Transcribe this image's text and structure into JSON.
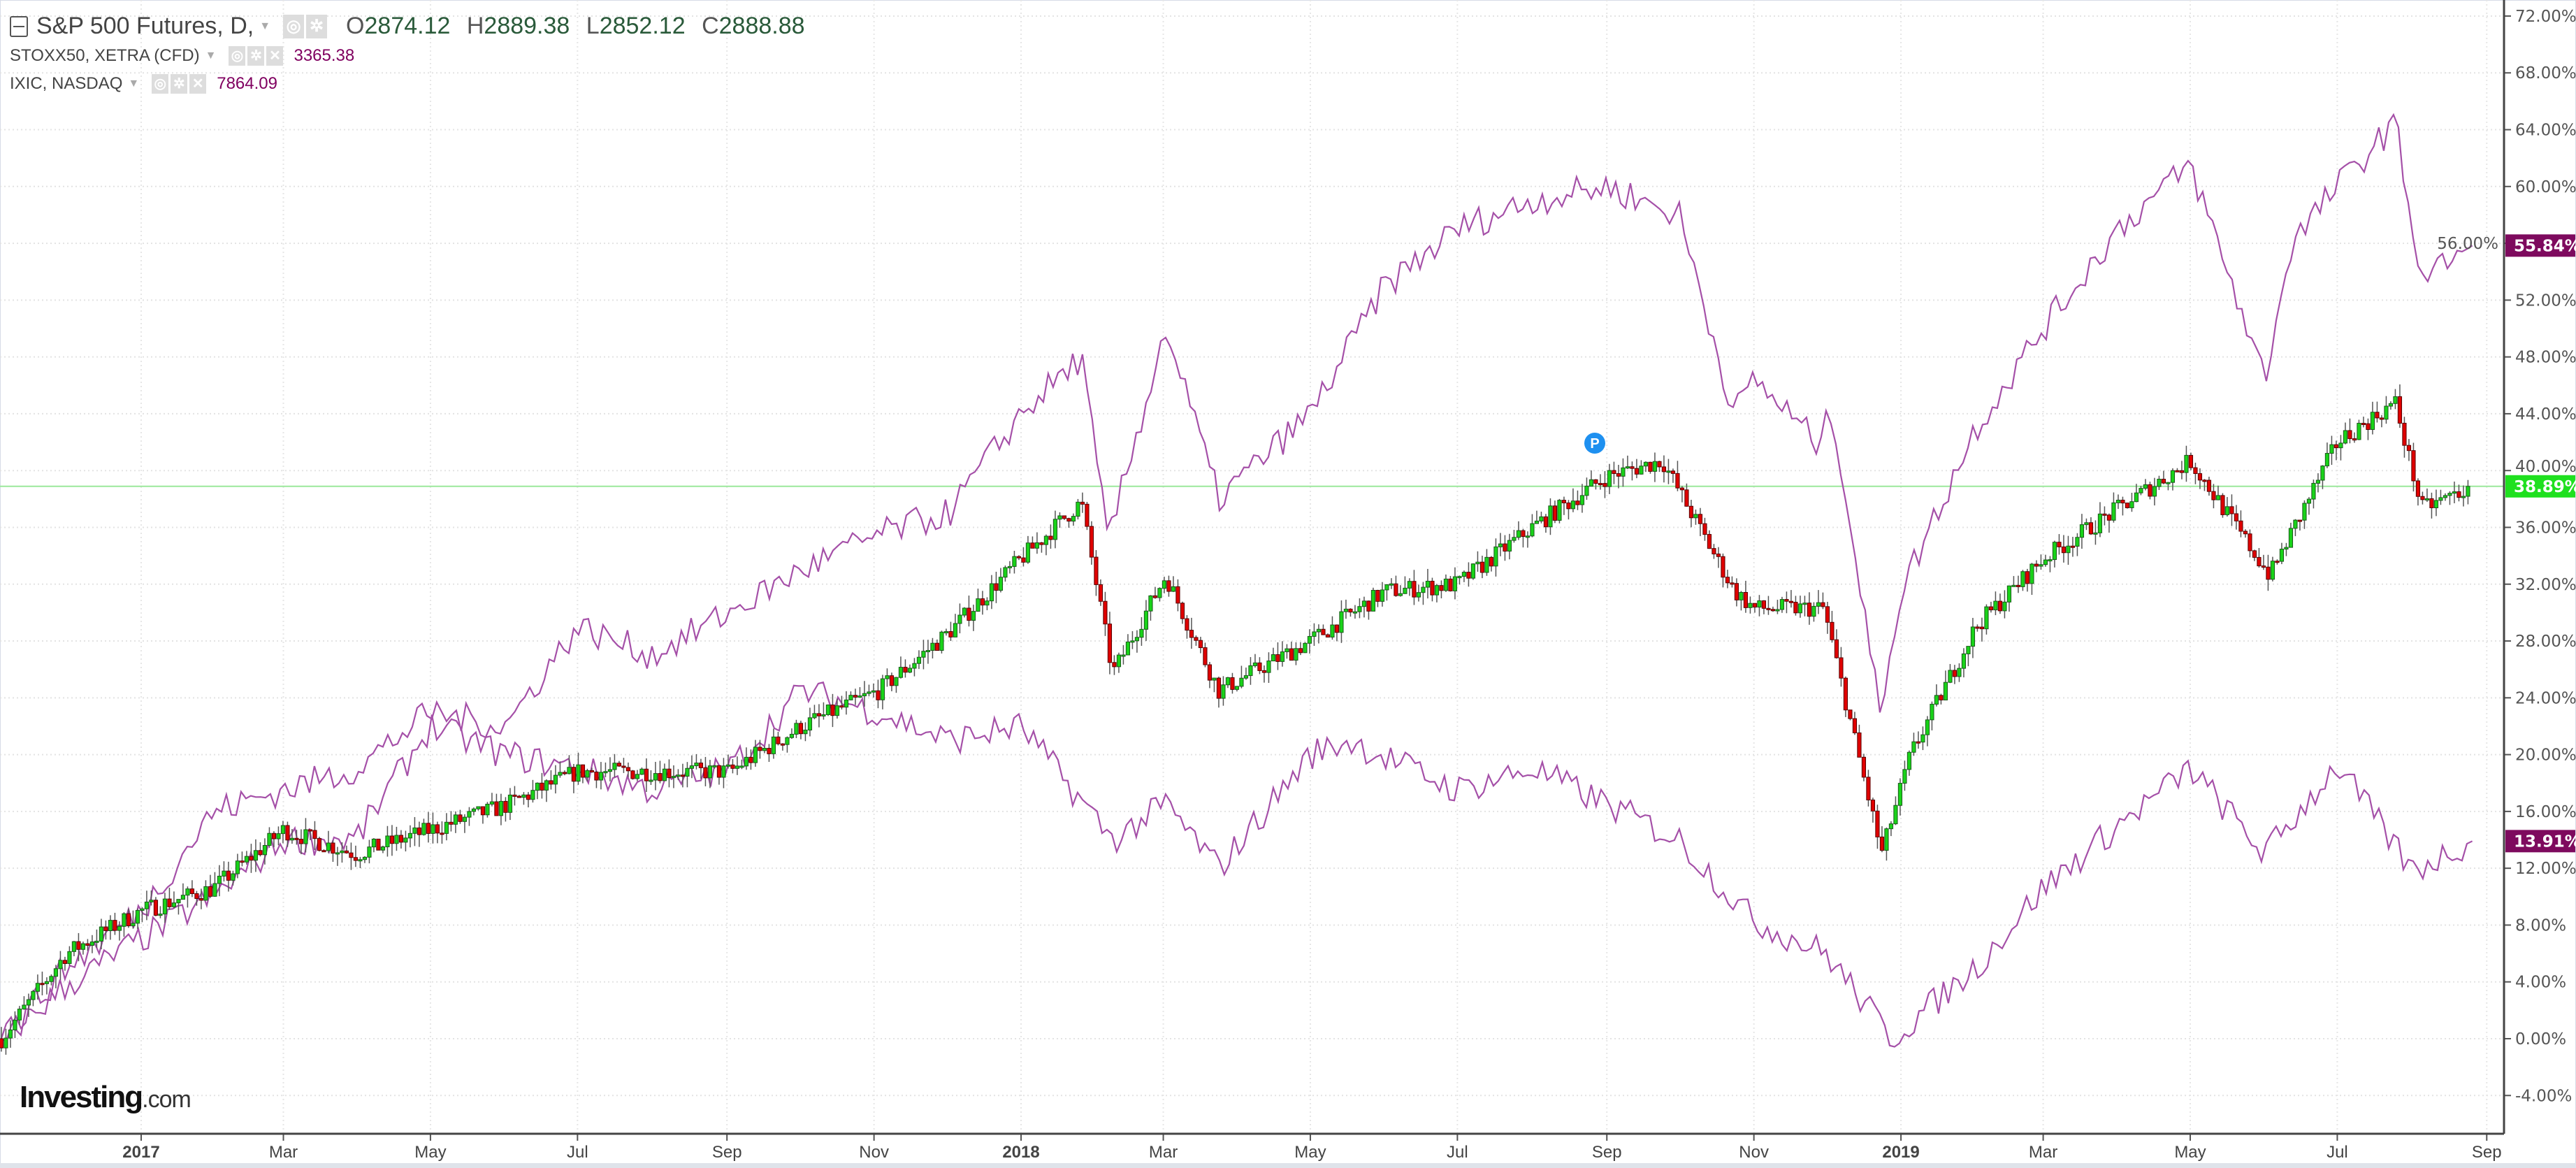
{
  "legend": {
    "main": {
      "symbol": "S&P 500 Futures, D,",
      "o_label": "O",
      "o": "2874.12",
      "h_label": "H",
      "h": "2889.38",
      "l_label": "L",
      "l": "2852.12",
      "c_label": "C",
      "c": "2888.88"
    },
    "compare1": {
      "symbol": "STOXX50, XETRA (CFD)",
      "value": "3365.38"
    },
    "compare2": {
      "symbol": "IXIC, NASDAQ",
      "value": "7864.09"
    }
  },
  "logo": {
    "brand": "Investing",
    "suffix": ".com"
  },
  "marker": {
    "label": "P",
    "date": "2018-08-27"
  },
  "colors": {
    "up": "#19d319",
    "down": "#e00000",
    "compare_line": "#a550a8",
    "badge_purple": "#7e0a5e",
    "badge_green": "#1fe01f",
    "pane_line": "#9be89b"
  },
  "chart_data": {
    "type": "candlestick+line",
    "ylabel": "",
    "yscale": "percent",
    "ylim": [
      -6,
      73
    ],
    "y_ticks": [
      "72.00%",
      "68.00%",
      "64.00%",
      "60.00%",
      "56.00%",
      "52.00%",
      "48.00%",
      "44.00%",
      "40.00%",
      "36.00%",
      "32.00%",
      "28.00%",
      "24.00%",
      "20.00%",
      "16.00%",
      "12.00%",
      "8.00%",
      "4.00%",
      "0.00%",
      "-4.00%"
    ],
    "x_ticks": [
      {
        "label": "2017",
        "date": "2017-01-01",
        "bold": true
      },
      {
        "label": "Mar",
        "date": "2017-03-01"
      },
      {
        "label": "May",
        "date": "2017-05-01"
      },
      {
        "label": "Jul",
        "date": "2017-07-01"
      },
      {
        "label": "Sep",
        "date": "2017-09-01"
      },
      {
        "label": "Nov",
        "date": "2017-11-01"
      },
      {
        "label": "2018",
        "date": "2018-01-01",
        "bold": true
      },
      {
        "label": "Mar",
        "date": "2018-03-01"
      },
      {
        "label": "May",
        "date": "2018-05-01"
      },
      {
        "label": "Jul",
        "date": "2018-07-01"
      },
      {
        "label": "Sep",
        "date": "2018-09-01"
      },
      {
        "label": "Nov",
        "date": "2018-11-01"
      },
      {
        "label": "2019",
        "date": "2019-01-01",
        "bold": true
      },
      {
        "label": "Mar",
        "date": "2019-03-01"
      },
      {
        "label": "May",
        "date": "2019-05-01"
      },
      {
        "label": "Jul",
        "date": "2019-07-01"
      },
      {
        "label": "Sep",
        "date": "2019-09-01"
      }
    ],
    "grid": true,
    "series": [
      {
        "name": "S&P 500 Futures",
        "style": "candles",
        "last_label": "38.89%",
        "last": 38.89,
        "points": [
          [
            "2016-11-04",
            0
          ],
          [
            "2016-12-01",
            6
          ],
          [
            "2017-01-01",
            9
          ],
          [
            "2017-01-31",
            10.6
          ],
          [
            "2017-03-01",
            14.7
          ],
          [
            "2017-03-31",
            13
          ],
          [
            "2017-05-01",
            14.7
          ],
          [
            "2017-06-01",
            16.4
          ],
          [
            "2017-07-01",
            18.8
          ],
          [
            "2017-08-01",
            18.8
          ],
          [
            "2017-09-02",
            18.8
          ],
          [
            "2017-10-02",
            22
          ],
          [
            "2017-11-03",
            24.5
          ],
          [
            "2017-12-02",
            28.6
          ],
          [
            "2018-01-01",
            33.8
          ],
          [
            "2018-01-26",
            37.8
          ],
          [
            "2018-02-08",
            25.7
          ],
          [
            "2018-03-02",
            32.6
          ],
          [
            "2018-03-24",
            24.5
          ],
          [
            "2018-05-01",
            28
          ],
          [
            "2018-06-01",
            31.5
          ],
          [
            "2018-07-01",
            32
          ],
          [
            "2018-08-01",
            36
          ],
          [
            "2018-09-01",
            39.6
          ],
          [
            "2018-09-24",
            40.7
          ],
          [
            "2018-10-24",
            31.5
          ],
          [
            "2018-11-01",
            30.3
          ],
          [
            "2018-11-30",
            30.3
          ],
          [
            "2018-12-24",
            13
          ],
          [
            "2019-01-05",
            20
          ],
          [
            "2019-02-01",
            29
          ],
          [
            "2019-03-01",
            33.8
          ],
          [
            "2019-04-01",
            37.3
          ],
          [
            "2019-05-01",
            40.7
          ],
          [
            "2019-06-03",
            32.6
          ],
          [
            "2019-07-01",
            42
          ],
          [
            "2019-07-25",
            44.8
          ],
          [
            "2019-08-05",
            37.3
          ],
          [
            "2019-08-26",
            38.89
          ]
        ]
      },
      {
        "name": "STOXX50, XETRA (CFD)",
        "style": "line",
        "last_label": "13.91%",
        "last": 13.91,
        "points": [
          [
            "2016-11-04",
            0
          ],
          [
            "2016-12-01",
            3.7
          ],
          [
            "2017-01-01",
            7
          ],
          [
            "2017-01-31",
            10
          ],
          [
            "2017-03-01",
            14
          ],
          [
            "2017-03-31",
            14
          ],
          [
            "2017-05-01",
            22
          ],
          [
            "2017-06-01",
            20
          ],
          [
            "2017-07-01",
            19
          ],
          [
            "2017-08-01",
            17.5
          ],
          [
            "2017-09-02",
            19
          ],
          [
            "2017-10-02",
            24.5
          ],
          [
            "2017-11-03",
            23
          ],
          [
            "2017-12-02",
            21
          ],
          [
            "2018-01-01",
            22
          ],
          [
            "2018-02-08",
            14
          ],
          [
            "2018-03-02",
            16.5
          ],
          [
            "2018-03-24",
            12
          ],
          [
            "2018-05-01",
            20
          ],
          [
            "2018-05-17",
            21
          ],
          [
            "2018-07-01",
            17.5
          ],
          [
            "2018-08-01",
            19
          ],
          [
            "2018-09-01",
            16.5
          ],
          [
            "2018-10-01",
            14
          ],
          [
            "2018-11-01",
            8.3
          ],
          [
            "2018-12-01",
            6
          ],
          [
            "2018-12-28",
            0
          ],
          [
            "2019-02-01",
            5
          ],
          [
            "2019-03-01",
            10.6
          ],
          [
            "2019-04-01",
            15
          ],
          [
            "2019-05-01",
            19
          ],
          [
            "2019-06-01",
            13
          ],
          [
            "2019-07-01",
            19.3
          ],
          [
            "2019-08-01",
            11.8
          ],
          [
            "2019-08-26",
            13.91
          ]
        ]
      },
      {
        "name": "IXIC, NASDAQ",
        "style": "line",
        "last_label": "55.84%",
        "last": 55.84,
        "points": [
          [
            "2016-11-04",
            0
          ],
          [
            "2016-12-01",
            5
          ],
          [
            "2017-01-01",
            9
          ],
          [
            "2017-01-31",
            16
          ],
          [
            "2017-03-01",
            17.5
          ],
          [
            "2017-03-31",
            19
          ],
          [
            "2017-05-01",
            23
          ],
          [
            "2017-06-01",
            22
          ],
          [
            "2017-07-01",
            29
          ],
          [
            "2017-08-01",
            27
          ],
          [
            "2017-09-02",
            30
          ],
          [
            "2017-10-02",
            33
          ],
          [
            "2017-11-03",
            35.5
          ],
          [
            "2017-12-02",
            37
          ],
          [
            "2018-01-01",
            44
          ],
          [
            "2018-01-26",
            48
          ],
          [
            "2018-02-06",
            35
          ],
          [
            "2018-03-02",
            50
          ],
          [
            "2018-03-24",
            38
          ],
          [
            "2018-05-01",
            44
          ],
          [
            "2018-06-01",
            53
          ],
          [
            "2018-07-01",
            57
          ],
          [
            "2018-08-01",
            59
          ],
          [
            "2018-09-01",
            60
          ],
          [
            "2018-10-01",
            58
          ],
          [
            "2018-10-24",
            44
          ],
          [
            "2018-11-01",
            46.5
          ],
          [
            "2018-11-27",
            42
          ],
          [
            "2018-12-04",
            44
          ],
          [
            "2018-12-23",
            23
          ],
          [
            "2019-01-01",
            31.5
          ],
          [
            "2019-02-01",
            43
          ],
          [
            "2019-03-01",
            50
          ],
          [
            "2019-04-01",
            57
          ],
          [
            "2019-05-01",
            61.5
          ],
          [
            "2019-06-01",
            46.5
          ],
          [
            "2019-06-12",
            56
          ],
          [
            "2019-07-01",
            60
          ],
          [
            "2019-07-25",
            64.5
          ],
          [
            "2019-08-05",
            53.5
          ],
          [
            "2019-08-26",
            55.84
          ]
        ]
      }
    ]
  }
}
